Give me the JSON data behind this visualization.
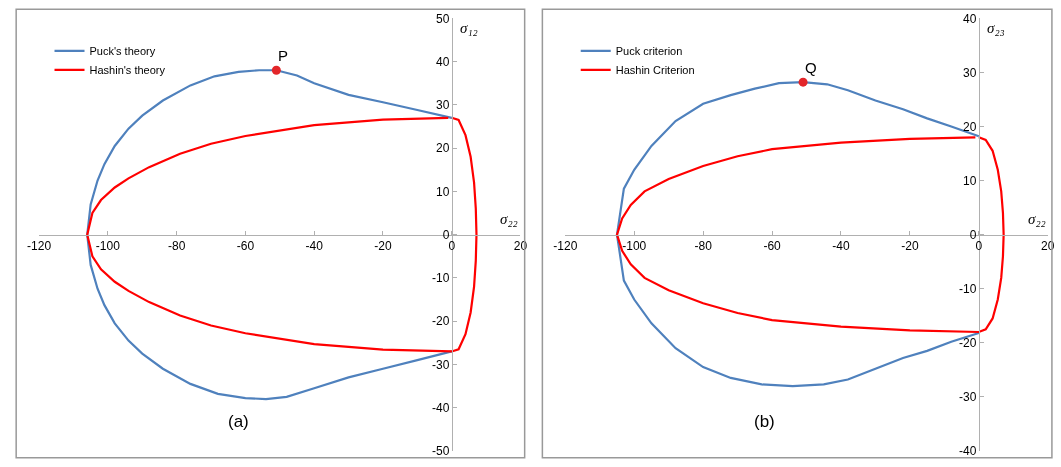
{
  "chart_data": [
    {
      "type": "line",
      "xlabel": "σ₂₂",
      "ylabel": "σ₁₂",
      "xlim": [
        -120,
        20
      ],
      "xticks": [
        -120,
        -100,
        -80,
        -60,
        -40,
        -20,
        0,
        20
      ],
      "ylim": [
        -50,
        50
      ],
      "yticks": [
        -50,
        -40,
        -30,
        -20,
        -10,
        0,
        10,
        20,
        30,
        40,
        50
      ],
      "legend": "top left",
      "annotations": [
        "(a)",
        {
          "text": "P",
          "x": -51,
          "y": 38
        }
      ],
      "series": [
        {
          "name": "Puck's theory",
          "color": "#4f81bd",
          "x": [
            0,
            -10,
            -20,
            -30,
            -40,
            -45,
            -51,
            -56,
            -62,
            -69,
            -76,
            -84,
            -90,
            -94,
            -98,
            -101,
            -103,
            -105,
            -106,
            -105,
            -103,
            -101,
            -98,
            -94,
            -90,
            -84,
            -76,
            -68,
            -60,
            -54,
            -48,
            -40,
            -30,
            -20,
            -10,
            0
          ],
          "values": [
            27,
            28.8,
            30.6,
            32.3,
            35,
            36.8,
            38,
            38,
            37.6,
            36.6,
            34.5,
            31,
            27.5,
            24.5,
            20.5,
            16.3,
            12.5,
            7,
            0,
            -7,
            -12.5,
            -16.3,
            -20.5,
            -24.5,
            -27.5,
            -31,
            -34.5,
            -36.8,
            -37.8,
            -38,
            -37.5,
            -35.5,
            -33,
            -31,
            -29,
            -27
          ]
        },
        {
          "name": "Hashin's theory",
          "color": "#ff0000",
          "x": [
            0,
            2,
            4,
            5.5,
            6.5,
            7,
            7.2,
            7,
            6.5,
            5.5,
            4,
            2,
            0,
            -20,
            -40,
            -60,
            -70,
            -79,
            -88,
            -94,
            -98,
            -102,
            -104.5,
            -106,
            -104.5,
            -102,
            -98,
            -94,
            -88,
            -79,
            -70,
            -60,
            -40,
            -20,
            -1
          ],
          "values": [
            27,
            26.5,
            23,
            18,
            12,
            6,
            0,
            -6,
            -12,
            -18,
            -23,
            -26.5,
            -27,
            -26.6,
            -25.3,
            -22.8,
            -21,
            -18.7,
            -15.6,
            -13,
            -10.9,
            -8,
            -5,
            0,
            5,
            8,
            10.9,
            13,
            15.6,
            18.7,
            21,
            22.8,
            25.3,
            26.6,
            27
          ]
        },
        {
          "type": "scatter",
          "marker": "circle",
          "color": "#e3262a",
          "x": [
            -51
          ],
          "values": [
            38
          ]
        }
      ]
    },
    {
      "type": "line",
      "xlabel": "σ₂₂",
      "ylabel": "σ₂₃",
      "xlim": [
        -120,
        20
      ],
      "xticks": [
        -120,
        -100,
        -80,
        -60,
        -40,
        -20,
        0,
        20
      ],
      "ylim": [
        -40,
        40
      ],
      "yticks": [
        -40,
        -30,
        -20,
        -10,
        0,
        10,
        20,
        30,
        40
      ],
      "legend": "top left",
      "annotations": [
        "(b)",
        {
          "text": "Q",
          "x": -51,
          "y": 28.2
        }
      ],
      "series": [
        {
          "name": "Puck criterion",
          "color": "#4f81bd",
          "x": [
            0,
            -8,
            -15,
            -22,
            -30,
            -38,
            -44,
            -51,
            -58,
            -65,
            -72,
            -80,
            -88,
            -95,
            -100,
            -103,
            -105,
            -103,
            -100,
            -95,
            -88,
            -80,
            -72,
            -63,
            -54,
            -45,
            -38,
            -30,
            -22,
            -15,
            -8,
            0
          ],
          "values": [
            18.2,
            20,
            21.5,
            23.2,
            24.8,
            26.7,
            27.8,
            28.2,
            28,
            27,
            25.8,
            24.2,
            21,
            16.4,
            12,
            8.5,
            0,
            -8.5,
            -12,
            -16.4,
            -21,
            -24.5,
            -26.5,
            -27.7,
            -28,
            -27.7,
            -26.8,
            -24.8,
            -22.8,
            -21.5,
            -19.8,
            -18.2
          ]
        },
        {
          "name": "Hashin Criterion",
          "color": "#ff0000",
          "x": [
            0,
            2,
            4,
            5.5,
            6.5,
            7,
            7.2,
            7,
            6.5,
            5.5,
            4,
            2,
            0,
            -20,
            -40,
            -60,
            -70,
            -80,
            -90,
            -97,
            -101,
            -103.5,
            -105,
            -103.5,
            -101,
            -97,
            -90,
            -80,
            -70,
            -60,
            -40,
            -20,
            -1
          ],
          "values": [
            18,
            17.5,
            15.5,
            12,
            8,
            4,
            0,
            -4,
            -8,
            -12,
            -15.5,
            -17.5,
            -18,
            -17.7,
            -17,
            -15.8,
            -14.5,
            -12.7,
            -10.3,
            -8,
            -5.5,
            -3,
            0,
            3,
            5.5,
            8,
            10.3,
            12.7,
            14.5,
            15.8,
            17,
            17.7,
            18
          ]
        },
        {
          "type": "scatter",
          "marker": "circle",
          "color": "#e3262a",
          "x": [
            -51
          ],
          "values": [
            28.2
          ]
        }
      ]
    }
  ]
}
